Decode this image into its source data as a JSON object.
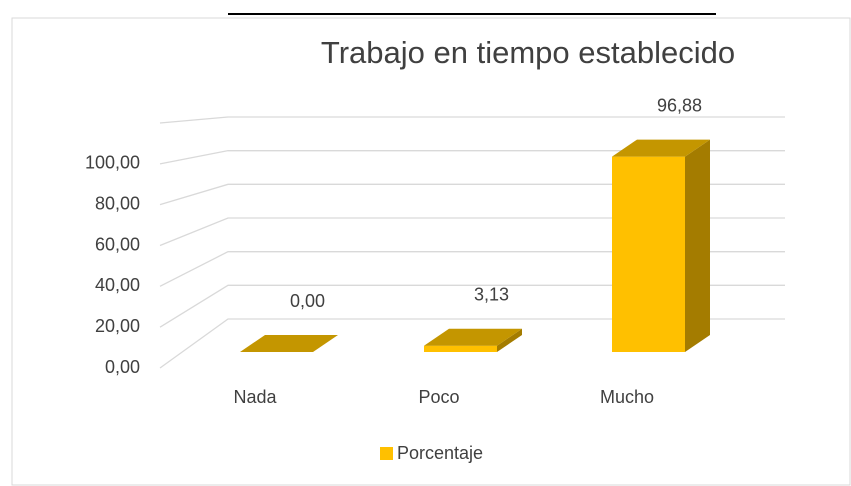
{
  "chart_data": {
    "type": "bar3d",
    "title": "Trabajo en tiempo establecido",
    "categories": [
      "Nada",
      "Poco",
      "Mucho"
    ],
    "series": [
      {
        "name": "Porcentaje",
        "color": "#ffc000",
        "values": [
          0,
          3.13,
          96.88
        ],
        "value_labels": [
          "0,00",
          "3,13",
          "96,88"
        ]
      }
    ],
    "ylim": [
      0,
      120
    ],
    "yticks": [
      {
        "value": 0,
        "label": "0,00"
      },
      {
        "value": 20,
        "label": "20,00"
      },
      {
        "value": 40,
        "label": "40,00"
      },
      {
        "value": 60,
        "label": "60,00"
      },
      {
        "value": 80,
        "label": "80,00"
      },
      {
        "value": 100,
        "label": "100,00"
      }
    ],
    "grid": true,
    "legend": "bottom"
  }
}
